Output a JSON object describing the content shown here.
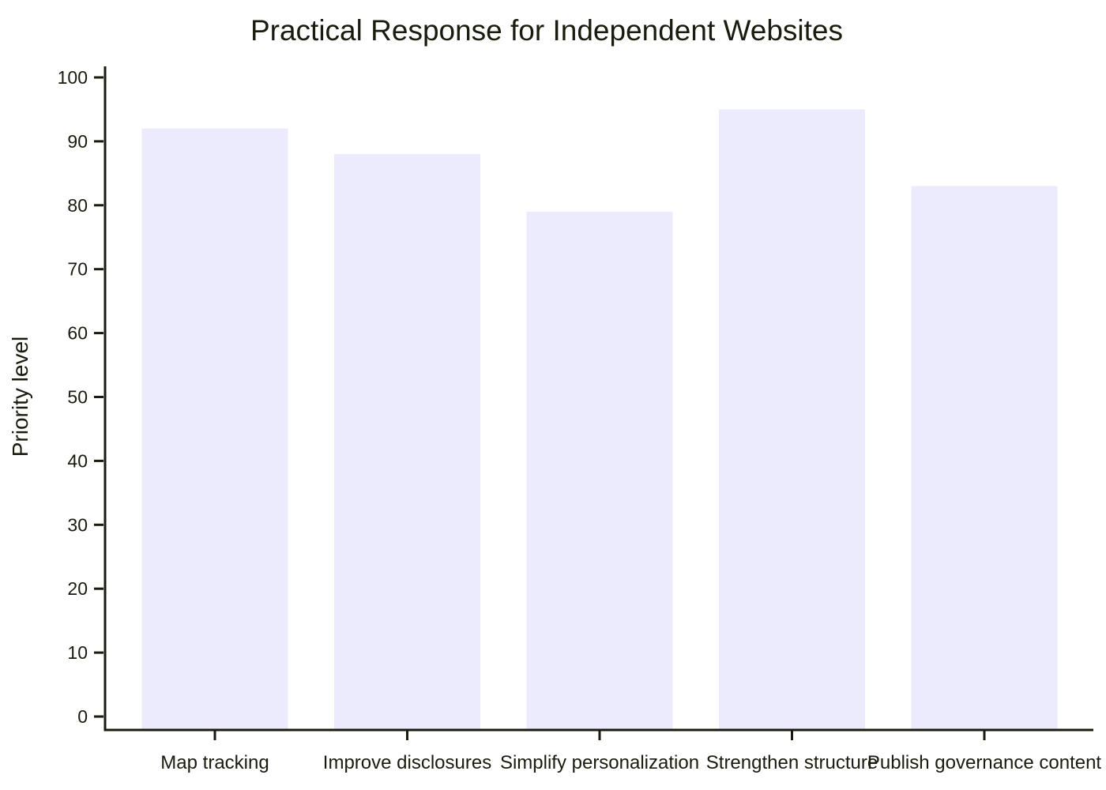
{
  "chart_data": {
    "type": "bar",
    "title": "Practical Response for Independent Websites",
    "xlabel": "",
    "ylabel": "Priority level",
    "categories": [
      "Map tracking",
      "Improve disclosures",
      "Simplify personalization",
      "Strengthen structure",
      "Publish governance content"
    ],
    "values": [
      92,
      88,
      79,
      95,
      83
    ],
    "ylim": [
      0,
      100
    ],
    "yticks": [
      0,
      10,
      20,
      30,
      40,
      50,
      60,
      70,
      80,
      90,
      100
    ],
    "grid": false,
    "legend": "none",
    "colors": {
      "bar": "#ecebfd",
      "axis": "#1a1a0e",
      "text": "#1a1a0e",
      "background": "#ffffff"
    }
  }
}
